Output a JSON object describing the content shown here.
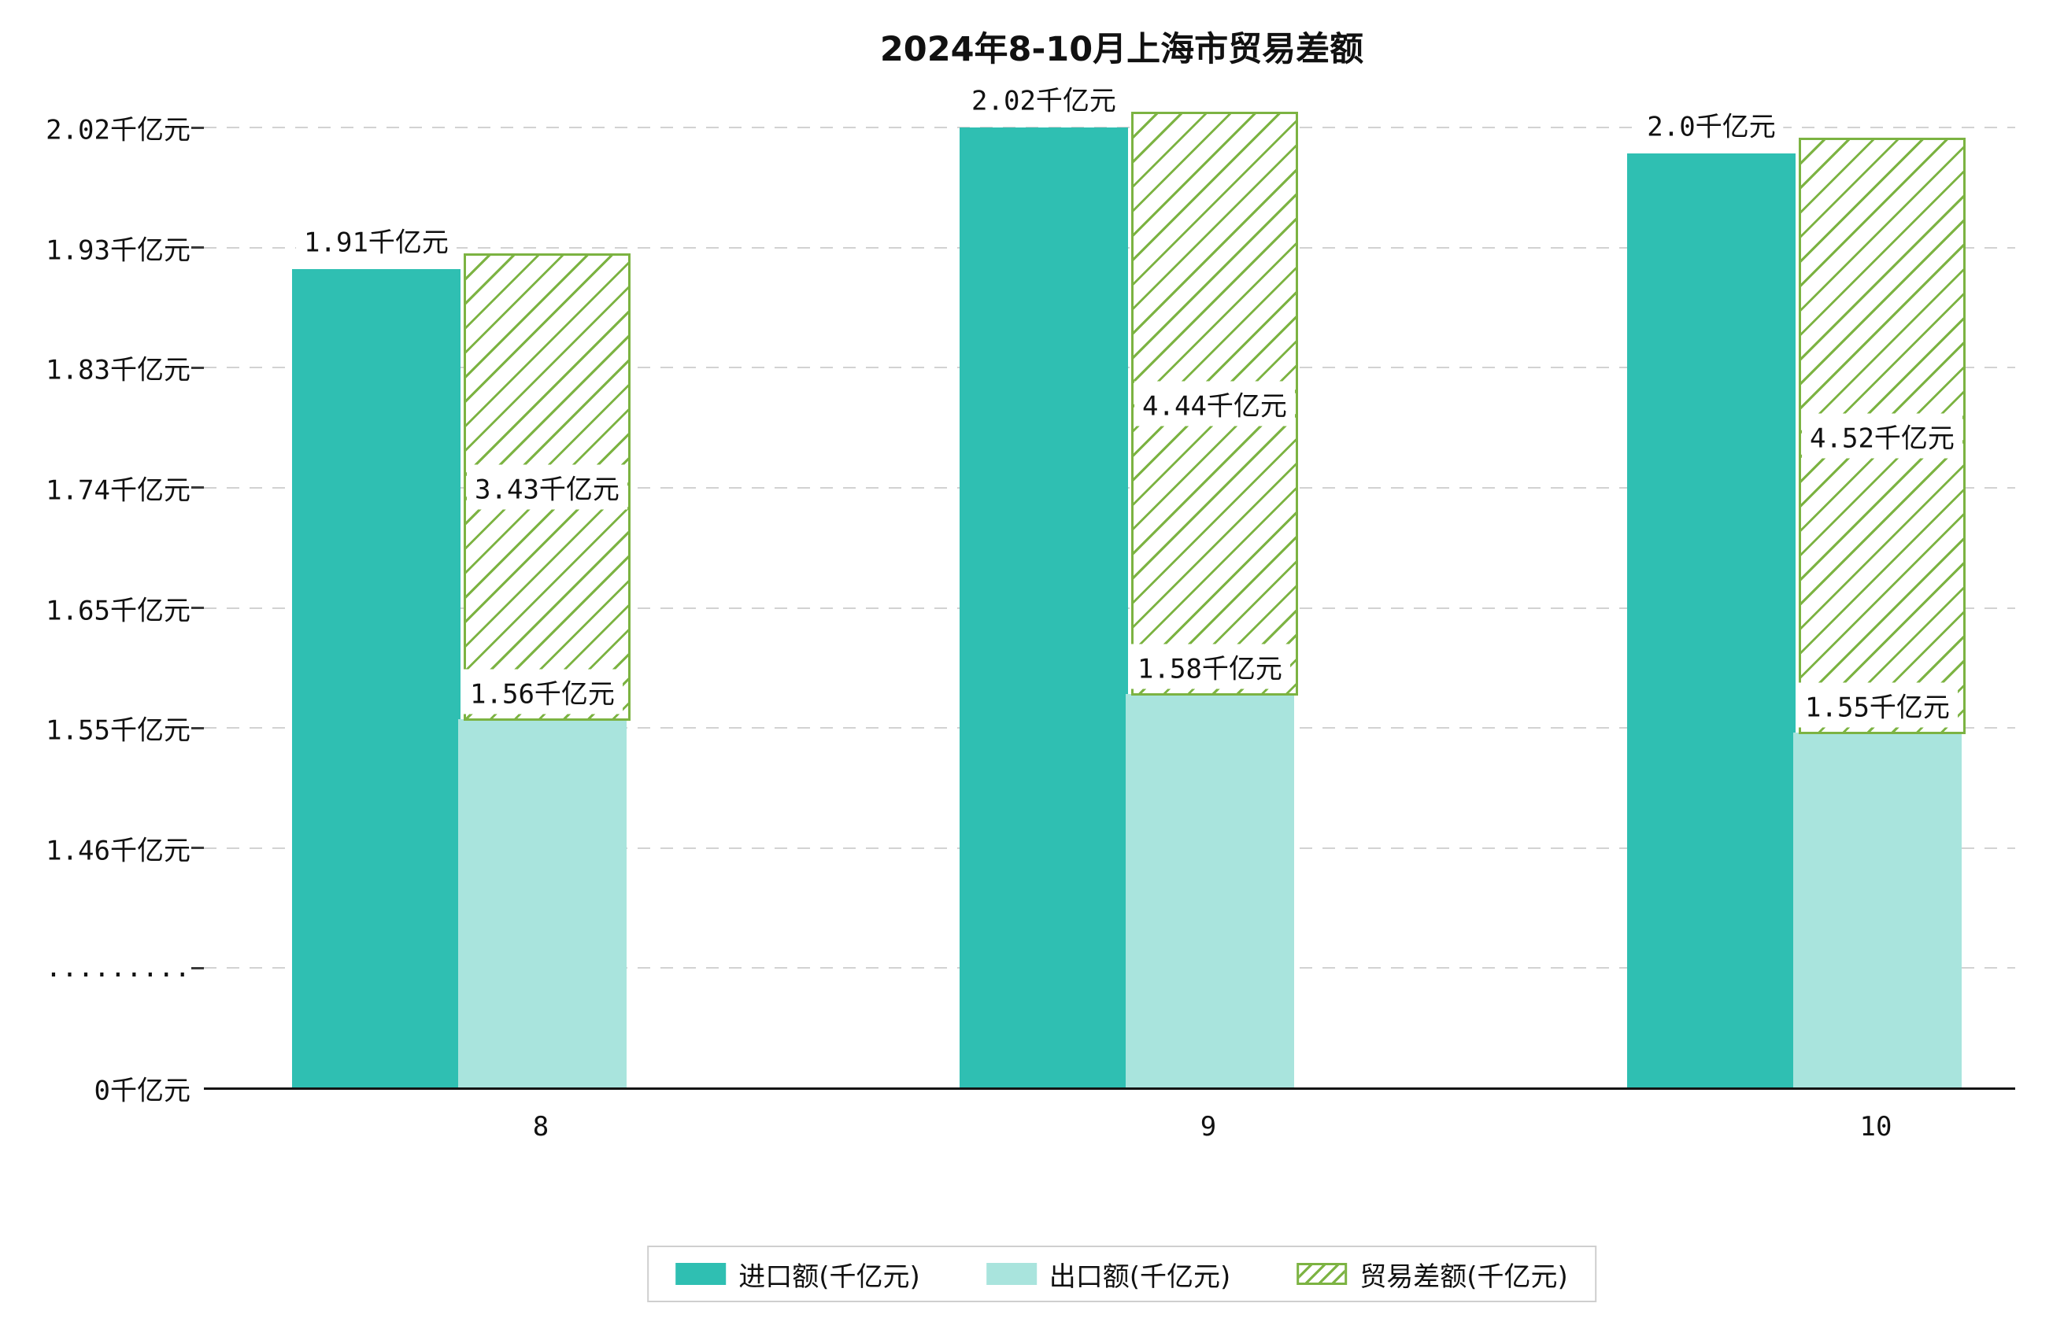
{
  "title": "2024年8-10月上海市贸易差额",
  "y_axis": {
    "tick_labels": [
      "2.02千亿元",
      "1.93千亿元",
      "1.83千亿元",
      "1.74千亿元",
      "1.65千亿元",
      "1.55千亿元",
      "1.46千亿元",
      ".........",
      "0千亿元"
    ]
  },
  "x_axis": {
    "categories": [
      "8",
      "9",
      "10"
    ]
  },
  "legend": [
    {
      "label": "进口额(千亿元)",
      "swatch": "solid-teal"
    },
    {
      "label": "出口额(千亿元)",
      "swatch": "solid-light-teal"
    },
    {
      "label": "贸易差额(千亿元)",
      "swatch": "hatched-green"
    }
  ],
  "colors": {
    "import": "#2fbfb2",
    "export": "#a9e4dd",
    "balance": "#7cb342",
    "grid": "#d2d2d2",
    "axis": "#141414"
  },
  "chart_data": {
    "type": "bar",
    "title": "2024年8-10月上海市贸易差额",
    "categories": [
      "8",
      "9",
      "10"
    ],
    "series": [
      {
        "name": "进口额(千亿元)",
        "values": [
          1.91,
          2.02,
          2.0
        ],
        "labels": [
          "1.91千亿元",
          "2.02千亿元",
          "2.0千亿元"
        ]
      },
      {
        "name": "出口额(千亿元)",
        "values": [
          1.56,
          1.58,
          1.55
        ],
        "labels": [
          "1.56千亿元",
          "1.58千亿元",
          "1.55千亿元"
        ]
      },
      {
        "name": "贸易差额(千亿元)",
        "values": [
          3.43,
          4.44,
          4.52
        ],
        "labels": [
          "3.43千亿元",
          "4.44千亿元",
          "4.52千亿元"
        ]
      }
    ],
    "ylabel": "千亿元",
    "y_ticks": [
      2.02,
      1.93,
      1.83,
      1.74,
      1.65,
      1.55,
      1.46,
      0
    ],
    "axis_break": true,
    "grid": "dashed-horizontal",
    "legend_position": "bottom"
  }
}
